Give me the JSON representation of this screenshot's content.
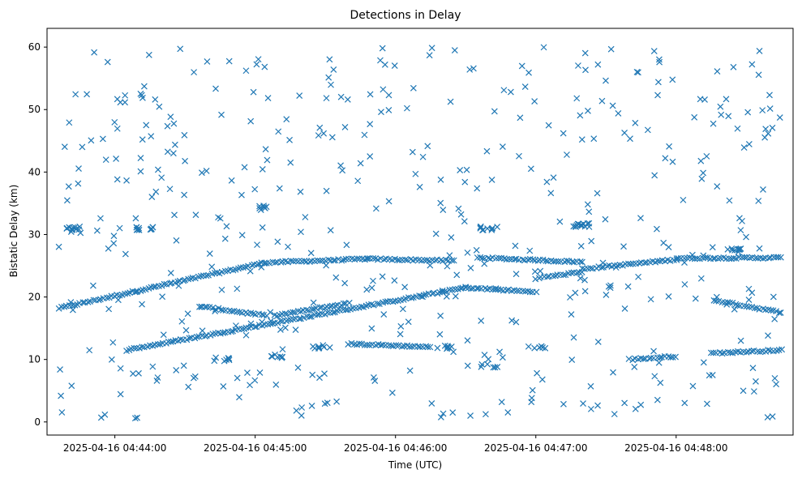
{
  "chart_data": {
    "type": "scatter",
    "title": "Detections in Delay",
    "xlabel": "Time (UTC)",
    "ylabel": "Bistatic Delay (km)",
    "x_ticks": [
      "2025-04-16 04:44:00",
      "2025-04-16 04:45:00",
      "2025-04-16 04:46:00",
      "2025-04-16 04:47:00",
      "2025-04-16 04:48:00"
    ],
    "x_unit": "seconds after 2025-04-16 04:44:00",
    "xlim": [
      -29,
      290
    ],
    "y_ticks": [
      0,
      10,
      20,
      30,
      40,
      50,
      60
    ],
    "ylim": [
      -2.1,
      63
    ],
    "marker": "x",
    "color": "#1f77b4",
    "grid": false,
    "tracks": [
      {
        "t_start": -24,
        "t_end": 64,
        "y_start": 18.2,
        "y_end": 25.5
      },
      {
        "t_start": 64,
        "t_end": 108,
        "y_start": 25.5,
        "y_end": 26.1
      },
      {
        "t_start": 108,
        "t_end": 145,
        "y_start": 26.1,
        "y_end": 25.8
      },
      {
        "t_start": 155,
        "t_end": 200,
        "y_start": 26.3,
        "y_end": 25.6
      },
      {
        "t_start": 200,
        "t_end": 240,
        "y_start": 24.5,
        "y_end": 26.0
      },
      {
        "t_start": 240,
        "t_end": 285,
        "y_start": 26.2,
        "y_end": 26.3
      },
      {
        "t_start": 36,
        "t_end": 65,
        "y_start": 18.5,
        "y_end": 17.0
      },
      {
        "t_start": 68,
        "t_end": 100,
        "y_start": 17.0,
        "y_end": 19.0
      },
      {
        "t_start": 256,
        "t_end": 285,
        "y_start": 19.5,
        "y_end": 17.5
      },
      {
        "t_start": 5,
        "t_end": 150,
        "y_start": 11.5,
        "y_end": 21.5
      },
      {
        "t_start": 150,
        "t_end": 180,
        "y_start": 21.5,
        "y_end": 20.8
      },
      {
        "t_start": 180,
        "t_end": 200,
        "y_start": 23.0,
        "y_end": 24.0
      },
      {
        "t_start": 100,
        "t_end": 135,
        "y_start": 12.5,
        "y_end": 12.0
      },
      {
        "t_start": 220,
        "t_end": 240,
        "y_start": 10.0,
        "y_end": 10.5
      },
      {
        "t_start": 255,
        "t_end": 285,
        "y_start": 11.0,
        "y_end": 11.5
      }
    ],
    "clusters": [
      {
        "t": -18,
        "y": 31,
        "n": 10
      },
      {
        "t": 13,
        "y": 31,
        "n": 10
      },
      {
        "t": 160,
        "y": 31,
        "n": 10
      },
      {
        "t": 200,
        "y": 31.5,
        "n": 14
      },
      {
        "t": 45,
        "y": 10,
        "n": 8
      },
      {
        "t": 70,
        "y": 10.5,
        "n": 8
      },
      {
        "t": 88,
        "y": 12,
        "n": 8
      },
      {
        "t": 160,
        "y": 9,
        "n": 6
      },
      {
        "t": 180,
        "y": 12,
        "n": 6
      },
      {
        "t": 62,
        "y": 34.5,
        "n": 6
      },
      {
        "t": 265,
        "y": 27.5,
        "n": 10
      },
      {
        "t": 140,
        "y": 12,
        "n": 8
      }
    ],
    "noise": {
      "count": 470,
      "t_range": [
        -24,
        286
      ],
      "y_range": [
        0.5,
        60
      ]
    }
  }
}
